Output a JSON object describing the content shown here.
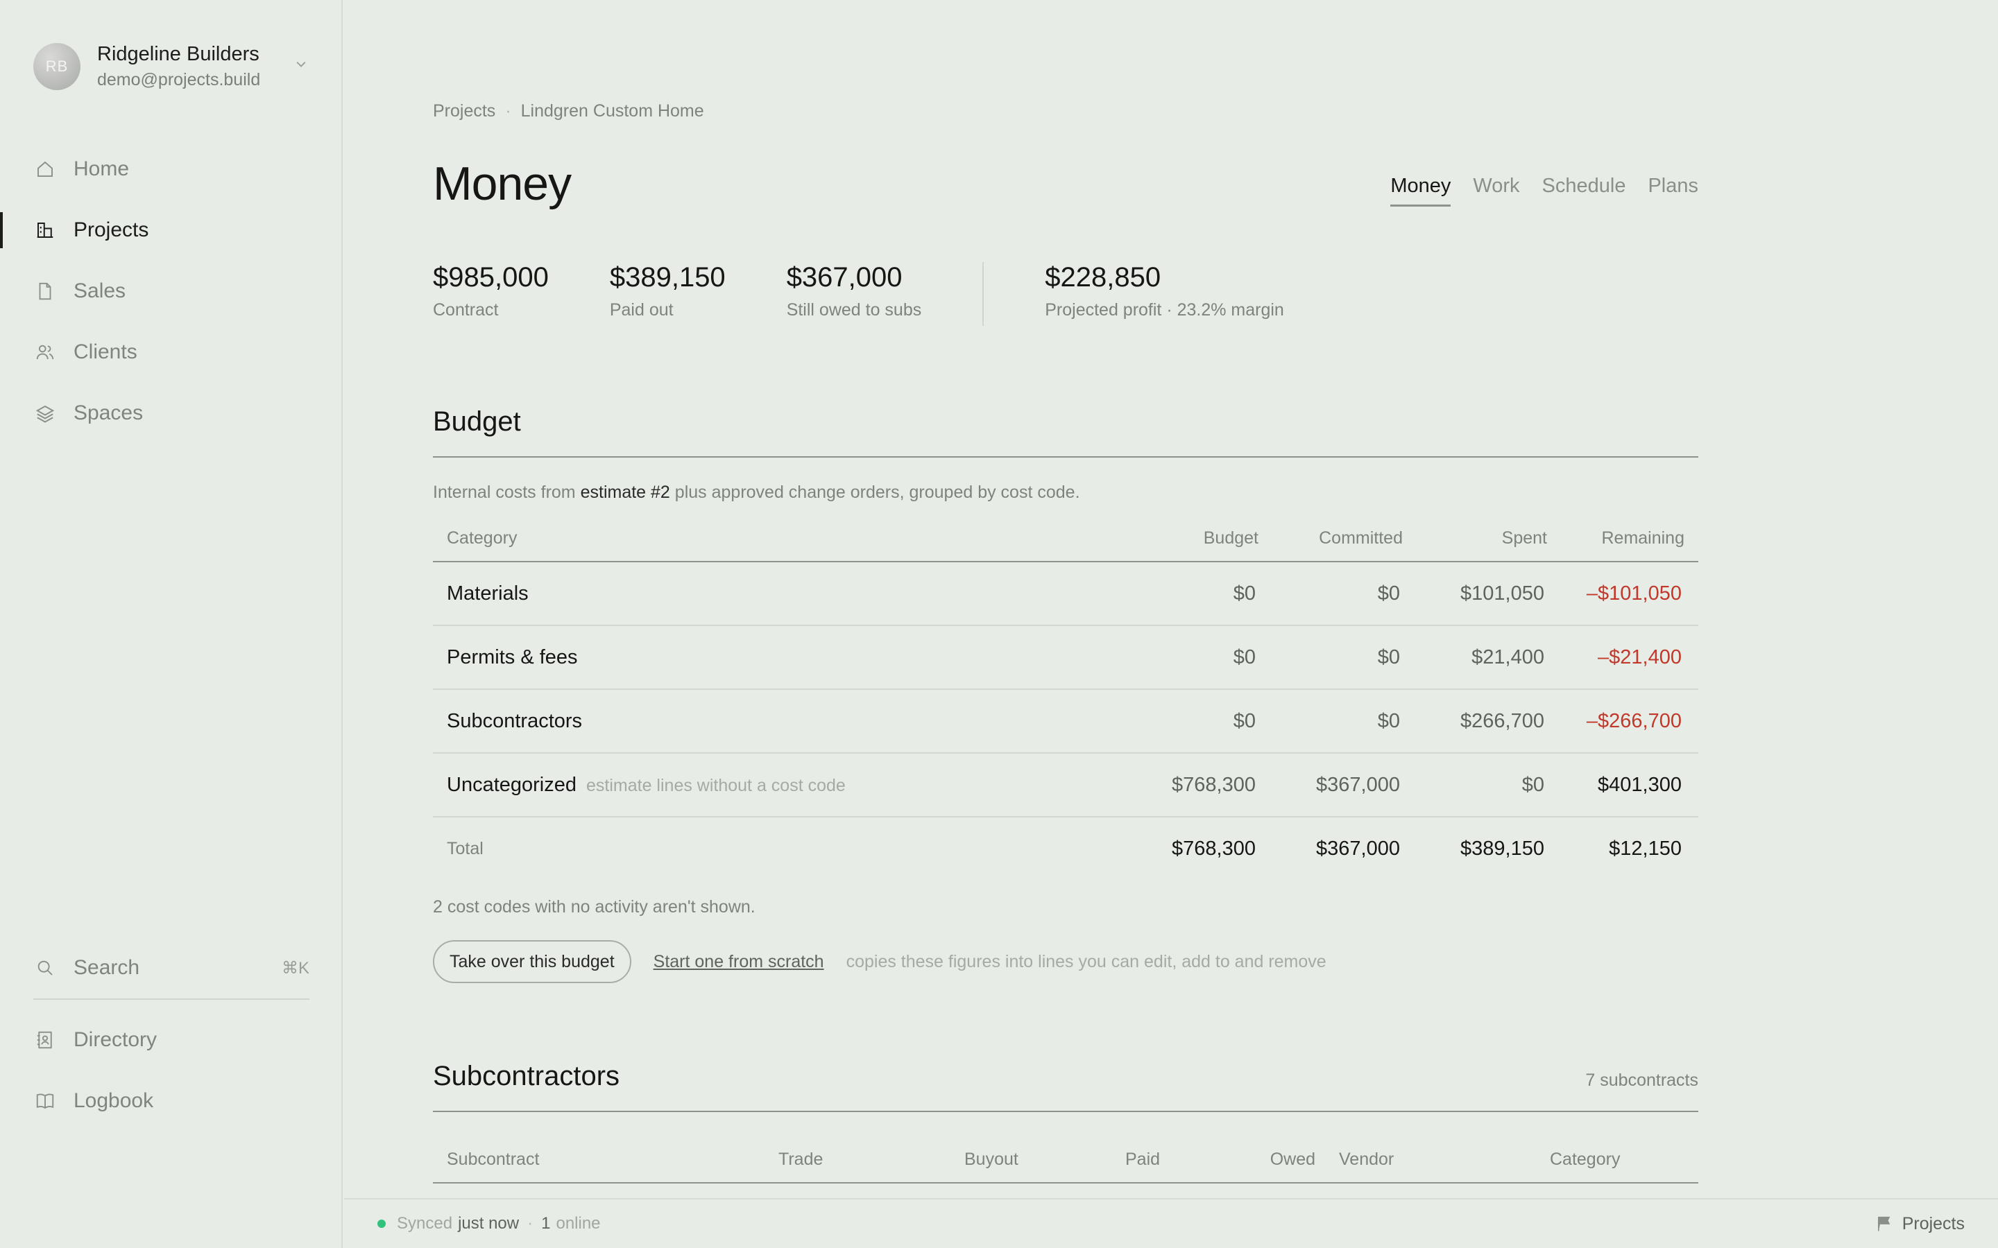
{
  "org": {
    "initials": "RB",
    "name": "Ridgeline Builders",
    "email": "demo@projects.build"
  },
  "nav": {
    "items": [
      {
        "label": "Home",
        "icon": "home-icon"
      },
      {
        "label": "Projects",
        "icon": "building-icon"
      },
      {
        "label": "Sales",
        "icon": "document-icon"
      },
      {
        "label": "Clients",
        "icon": "users-icon"
      },
      {
        "label": "Spaces",
        "icon": "layers-icon"
      }
    ],
    "search_label": "Search",
    "search_shortcut": "⌘K",
    "directory_label": "Directory",
    "logbook_label": "Logbook"
  },
  "breadcrumb": {
    "root": "Projects",
    "separator": "·",
    "current": "Lindgren Custom Home"
  },
  "page": {
    "title": "Money",
    "tabs": [
      "Money",
      "Work",
      "Schedule",
      "Plans"
    ]
  },
  "stats": {
    "contract_value": "$985,000",
    "contract_label": "Contract",
    "paid_value": "$389,150",
    "paid_label": "Paid out",
    "owed_value": "$367,000",
    "owed_label": "Still owed to subs",
    "profit_value": "$228,850",
    "profit_label": "Projected profit · 23.2% margin"
  },
  "budget": {
    "title": "Budget",
    "desc_before": "Internal costs from",
    "desc_link": "estimate #2",
    "desc_after": "plus approved change orders, grouped by cost code.",
    "columns": [
      "Category",
      "Budget",
      "Committed",
      "Spent",
      "Remaining"
    ],
    "rows": [
      {
        "category": "Materials",
        "hint": "",
        "budget": "$0",
        "committed": "$0",
        "spent": "$101,050",
        "remaining": "–$101,050"
      },
      {
        "category": "Permits & fees",
        "hint": "",
        "budget": "$0",
        "committed": "$0",
        "spent": "$21,400",
        "remaining": "–$21,400"
      },
      {
        "category": "Subcontractors",
        "hint": "",
        "budget": "$0",
        "committed": "$0",
        "spent": "$266,700",
        "remaining": "–$266,700"
      },
      {
        "category": "Uncategorized",
        "hint": "estimate lines without a cost code",
        "budget": "$768,300",
        "committed": "$367,000",
        "spent": "$0",
        "remaining": "$401,300"
      }
    ],
    "total": {
      "label": "Total",
      "budget": "$768,300",
      "committed": "$367,000",
      "spent": "$389,150",
      "remaining": "$12,150"
    },
    "note": "2 cost codes with no activity aren't shown.",
    "takeover_label": "Take over this budget",
    "scratch_label": "Start one from scratch",
    "action_hint": "copies these figures into lines you can edit, add to and remove"
  },
  "subcontractors": {
    "title": "Subcontractors",
    "count": "7 subcontracts",
    "columns": [
      "Subcontract",
      "Trade",
      "Buyout",
      "Paid",
      "Owed",
      "Vendor",
      "Category"
    ]
  },
  "status": {
    "synced_label": "Synced",
    "synced_time": "just now",
    "separator": "·",
    "online_count": "1",
    "online_label": "online",
    "right_label": "Projects"
  },
  "colors": {
    "negative": "#c0392b",
    "online_dot": "#2fc27a",
    "background": "#e8ece7"
  }
}
